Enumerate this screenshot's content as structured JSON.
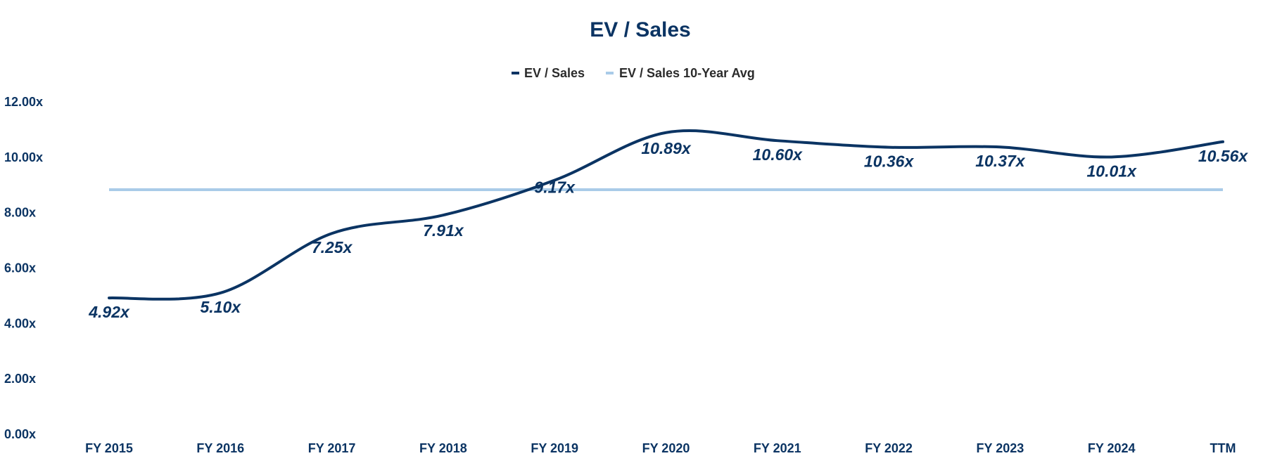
{
  "chart_data": {
    "type": "line",
    "title": "EV / Sales",
    "categories": [
      "FY 2015",
      "FY 2016",
      "FY 2017",
      "FY 2018",
      "FY 2019",
      "FY 2020",
      "FY 2021",
      "FY 2022",
      "FY 2023",
      "FY 2024",
      "TTM"
    ],
    "series": [
      {
        "name": "EV / Sales",
        "values": [
          4.92,
          5.1,
          7.25,
          7.91,
          9.17,
          10.89,
          10.6,
          10.36,
          10.37,
          10.01,
          10.56
        ],
        "labels": [
          "4.92x",
          "5.10x",
          "7.25x",
          "7.91x",
          "9.17x",
          "10.89x",
          "10.60x",
          "10.36x",
          "10.37x",
          "10.01x",
          "10.56x"
        ],
        "color": "#0b3463",
        "smooth": true
      },
      {
        "name": "EV / Sales 10-Year Avg",
        "value": 8.83,
        "color": "#a9cbe8"
      }
    ],
    "y_axis": {
      "min": 0,
      "max": 12,
      "step": 2,
      "tick_labels": [
        "0.00x",
        "2.00x",
        "4.00x",
        "6.00x",
        "8.00x",
        "10.00x",
        "12.00x"
      ]
    },
    "legend_position": "top-center",
    "grid": false,
    "xlabel": "",
    "ylabel": ""
  }
}
